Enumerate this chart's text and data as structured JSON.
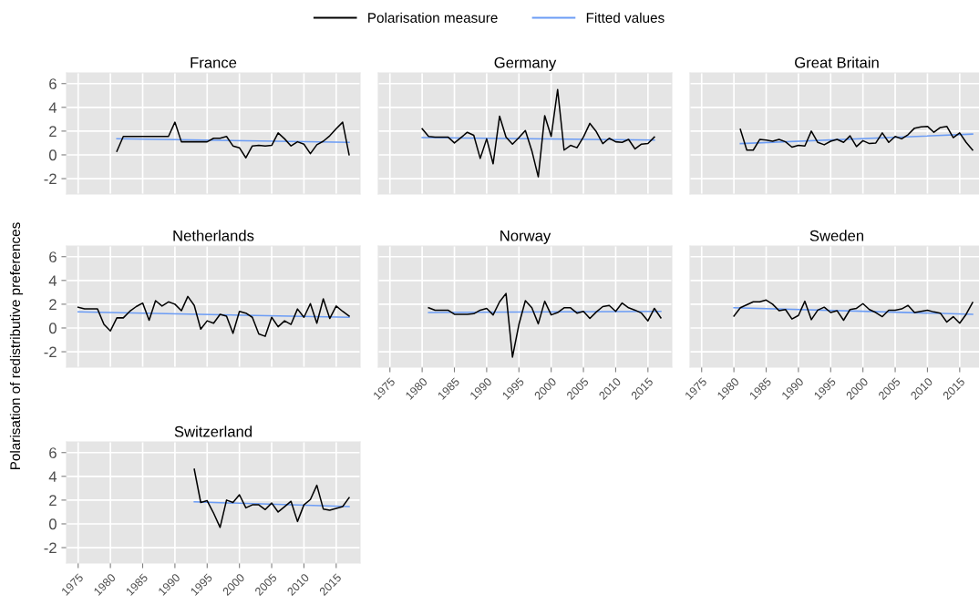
{
  "chart_data": [
    {
      "type": "line",
      "title": "France",
      "legend": "top",
      "grid": true,
      "tick_labels": "y",
      "xlim": [
        1973.2,
        2018.7
      ],
      "ylim": [
        -3.3,
        6.9
      ],
      "xticks": [
        1975,
        1980,
        1985,
        1990,
        1995,
        2000,
        2005,
        2010,
        2015
      ],
      "yticks": [
        -2,
        0,
        2,
        4,
        6
      ],
      "series": [
        {
          "name": "Polarisation measure",
          "color": "#000000",
          "x": [
            1981,
            1982,
            1983,
            1984,
            1985,
            1986,
            1987,
            1988,
            1989,
            1990,
            1991,
            1992,
            1993,
            1994,
            1995,
            1996,
            1997,
            1998,
            1999,
            2000,
            2001,
            2002,
            2003,
            2004,
            2005,
            2006,
            2007,
            2008,
            2009,
            2010,
            2011,
            2012,
            2013,
            2014,
            2015,
            2016,
            2017
          ],
          "values": [
            0.3,
            1.55,
            1.55,
            1.55,
            1.55,
            1.55,
            1.55,
            1.55,
            1.55,
            2.75,
            1.1,
            1.1,
            1.1,
            1.1,
            1.1,
            1.4,
            1.4,
            1.55,
            0.75,
            0.6,
            -0.25,
            0.75,
            0.8,
            0.75,
            0.8,
            1.85,
            1.35,
            0.75,
            1.1,
            0.9,
            0.1,
            0.85,
            1.15,
            1.6,
            2.2,
            2.75,
            0.0
          ]
        },
        {
          "name": "Fitted values",
          "color": "#6b9cf5",
          "x": [
            1981,
            2017
          ],
          "values": [
            1.35,
            1.05
          ]
        }
      ]
    },
    {
      "type": "line",
      "title": "Germany",
      "grid": true,
      "tick_labels": false,
      "xlim": [
        1973.2,
        2018.7
      ],
      "ylim": [
        -3.3,
        6.9
      ],
      "xticks": [
        1975,
        1980,
        1985,
        1990,
        1995,
        2000,
        2005,
        2010,
        2015
      ],
      "yticks": [
        -2,
        0,
        2,
        4,
        6
      ],
      "series": [
        {
          "name": "Polarisation measure",
          "color": "#000000",
          "x": [
            1980,
            1981,
            1982,
            1983,
            1984,
            1985,
            1986,
            1987,
            1988,
            1989,
            1990,
            1991,
            1992,
            1993,
            1994,
            1995,
            1996,
            1997,
            1998,
            1999,
            2000,
            2001,
            2002,
            2003,
            2004,
            2005,
            2006,
            2007,
            2008,
            2009,
            2010,
            2011,
            2012,
            2013,
            2014,
            2015,
            2016
          ],
          "values": [
            2.2,
            1.55,
            1.5,
            1.5,
            1.5,
            1.0,
            1.45,
            1.9,
            1.65,
            -0.3,
            1.35,
            -0.75,
            3.25,
            1.5,
            0.9,
            1.45,
            2.05,
            0.35,
            -1.85,
            3.3,
            1.55,
            5.5,
            0.4,
            0.8,
            0.6,
            1.5,
            2.65,
            1.95,
            0.95,
            1.4,
            1.1,
            1.05,
            1.3,
            0.5,
            0.9,
            0.95,
            1.5
          ]
        },
        {
          "name": "Fitted values",
          "color": "#6b9cf5",
          "x": [
            1980,
            2016
          ],
          "values": [
            1.45,
            1.25
          ]
        }
      ]
    },
    {
      "type": "line",
      "title": "Great Britain",
      "grid": true,
      "tick_labels": false,
      "xlim": [
        1973.2,
        2018.7
      ],
      "ylim": [
        -3.3,
        6.9
      ],
      "xticks": [
        1975,
        1980,
        1985,
        1990,
        1995,
        2000,
        2005,
        2010,
        2015
      ],
      "yticks": [
        -2,
        0,
        2,
        4,
        6
      ],
      "series": [
        {
          "name": "Polarisation measure",
          "color": "#000000",
          "x": [
            1981,
            1982,
            1983,
            1984,
            1985,
            1986,
            1987,
            1988,
            1989,
            1990,
            1991,
            1992,
            1993,
            1994,
            1995,
            1996,
            1997,
            1998,
            1999,
            2000,
            2001,
            2002,
            2003,
            2004,
            2005,
            2006,
            2007,
            2008,
            2009,
            2010,
            2011,
            2012,
            2013,
            2014,
            2015,
            2016,
            2017
          ],
          "values": [
            2.15,
            0.4,
            0.4,
            1.3,
            1.25,
            1.15,
            1.3,
            1.1,
            0.65,
            0.8,
            0.75,
            2.0,
            1.05,
            0.85,
            1.15,
            1.3,
            1.05,
            1.6,
            0.7,
            1.2,
            0.95,
            1.0,
            1.85,
            1.05,
            1.55,
            1.35,
            1.7,
            2.25,
            2.35,
            2.4,
            1.9,
            2.3,
            2.4,
            1.45,
            1.85,
            1.05,
            0.4
          ]
        },
        {
          "name": "Fitted values",
          "color": "#6b9cf5",
          "x": [
            1981,
            2017
          ],
          "values": [
            0.95,
            1.75
          ]
        }
      ]
    },
    {
      "type": "line",
      "title": "Netherlands",
      "ylabel": "Polarisation of redistributive preferences",
      "grid": true,
      "tick_labels": "y",
      "xlim": [
        1973.2,
        2018.7
      ],
      "ylim": [
        -3.3,
        6.9
      ],
      "xticks": [
        1975,
        1980,
        1985,
        1990,
        1995,
        2000,
        2005,
        2010,
        2015
      ],
      "yticks": [
        -2,
        0,
        2,
        4,
        6
      ],
      "series": [
        {
          "name": "Polarisation measure",
          "color": "#000000",
          "x": [
            1975,
            1976,
            1977,
            1978,
            1979,
            1980,
            1981,
            1982,
            1983,
            1984,
            1985,
            1986,
            1987,
            1988,
            1989,
            1990,
            1991,
            1992,
            1993,
            1994,
            1995,
            1996,
            1997,
            1998,
            1999,
            2000,
            2001,
            2002,
            2003,
            2004,
            2005,
            2006,
            2007,
            2008,
            2009,
            2010,
            2011,
            2012,
            2013,
            2014,
            2015,
            2016,
            2017
          ],
          "values": [
            1.75,
            1.6,
            1.6,
            1.6,
            0.3,
            -0.25,
            0.85,
            0.85,
            1.4,
            1.8,
            2.1,
            0.65,
            2.3,
            1.85,
            2.2,
            2.0,
            1.45,
            2.65,
            1.9,
            -0.1,
            0.6,
            0.4,
            1.15,
            1.0,
            -0.45,
            1.4,
            1.25,
            0.9,
            -0.5,
            -0.7,
            0.9,
            0.1,
            0.6,
            0.3,
            1.6,
            0.9,
            2.05,
            0.4,
            2.45,
            0.8,
            1.85,
            1.4,
            1.0
          ]
        },
        {
          "name": "Fitted values",
          "color": "#6b9cf5",
          "x": [
            1975,
            2017
          ],
          "values": [
            1.35,
            0.9
          ]
        }
      ]
    },
    {
      "type": "line",
      "title": "Norway",
      "grid": true,
      "tick_labels": "x",
      "xlim": [
        1973.2,
        2018.7
      ],
      "ylim": [
        -3.3,
        6.9
      ],
      "xticks": [
        1975,
        1980,
        1985,
        1990,
        1995,
        2000,
        2005,
        2010,
        2015
      ],
      "yticks": [
        -2,
        0,
        2,
        4,
        6
      ],
      "series": [
        {
          "name": "Polarisation measure",
          "color": "#000000",
          "x": [
            1981,
            1982,
            1983,
            1984,
            1985,
            1986,
            1987,
            1988,
            1989,
            1990,
            1991,
            1992,
            1993,
            1994,
            1995,
            1996,
            1997,
            1998,
            1999,
            2000,
            2001,
            2002,
            2003,
            2004,
            2005,
            2006,
            2007,
            2008,
            2009,
            2010,
            2011,
            2012,
            2013,
            2014,
            2015,
            2016,
            2017
          ],
          "values": [
            1.7,
            1.5,
            1.5,
            1.5,
            1.15,
            1.15,
            1.15,
            1.2,
            1.5,
            1.65,
            1.1,
            2.2,
            2.9,
            -2.45,
            0.3,
            2.3,
            1.7,
            0.35,
            2.25,
            1.1,
            1.3,
            1.7,
            1.7,
            1.25,
            1.4,
            0.8,
            1.35,
            1.8,
            1.9,
            1.4,
            2.1,
            1.7,
            1.5,
            1.25,
            0.6,
            1.65,
            0.85
          ]
        },
        {
          "name": "Fitted values",
          "color": "#6b9cf5",
          "x": [
            1981,
            2017
          ],
          "values": [
            1.3,
            1.4
          ]
        }
      ]
    },
    {
      "type": "line",
      "title": "Sweden",
      "grid": true,
      "tick_labels": "x",
      "xlim": [
        1973.2,
        2018.7
      ],
      "ylim": [
        -3.3,
        6.9
      ],
      "xticks": [
        1975,
        1980,
        1985,
        1990,
        1995,
        2000,
        2005,
        2010,
        2015
      ],
      "yticks": [
        -2,
        0,
        2,
        4,
        6
      ],
      "series": [
        {
          "name": "Polarisation measure",
          "color": "#000000",
          "x": [
            1980,
            1981,
            1982,
            1983,
            1984,
            1985,
            1986,
            1987,
            1988,
            1989,
            1990,
            1991,
            1992,
            1993,
            1994,
            1995,
            1996,
            1997,
            1998,
            1999,
            2000,
            2001,
            2002,
            2003,
            2004,
            2005,
            2006,
            2007,
            2008,
            2009,
            2010,
            2011,
            2012,
            2013,
            2014,
            2015,
            2016,
            2017
          ],
          "values": [
            1.0,
            1.7,
            1.95,
            2.2,
            2.2,
            2.35,
            2.0,
            1.45,
            1.55,
            0.75,
            1.05,
            2.25,
            0.7,
            1.5,
            1.75,
            1.3,
            1.45,
            0.65,
            1.55,
            1.65,
            2.05,
            1.55,
            1.3,
            0.95,
            1.5,
            1.5,
            1.6,
            1.9,
            1.3,
            1.4,
            1.5,
            1.35,
            1.25,
            0.5,
            0.95,
            0.4,
            1.15,
            2.15
          ]
        },
        {
          "name": "Fitted values",
          "color": "#6b9cf5",
          "x": [
            1980,
            2017
          ],
          "values": [
            1.7,
            1.15
          ]
        }
      ]
    },
    {
      "type": "line",
      "title": "Switzerland",
      "grid": true,
      "xlim": [
        1973.2,
        2018.7
      ],
      "ylim": [
        -3.3,
        6.9
      ],
      "xticks": [
        1975,
        1980,
        1985,
        1990,
        1995,
        2000,
        2005,
        2010,
        2015
      ],
      "yticks": [
        -2,
        0,
        2,
        4,
        6
      ],
      "series": [
        {
          "name": "Polarisation measure",
          "color": "#000000",
          "x": [
            1993,
            1994,
            1995,
            1996,
            1997,
            1998,
            1999,
            2000,
            2001,
            2002,
            2003,
            2004,
            2005,
            2006,
            2007,
            2008,
            2009,
            2010,
            2011,
            2012,
            2013,
            2014,
            2015,
            2016,
            2017
          ],
          "values": [
            4.6,
            1.8,
            1.95,
            0.9,
            -0.3,
            2.0,
            1.8,
            2.45,
            1.35,
            1.6,
            1.6,
            1.2,
            1.75,
            1.0,
            1.45,
            1.9,
            0.2,
            1.6,
            2.05,
            3.25,
            1.25,
            1.15,
            1.3,
            1.45,
            2.2
          ]
        },
        {
          "name": "Fitted values",
          "color": "#6b9cf5",
          "x": [
            1993,
            2017
          ],
          "values": [
            1.85,
            1.45
          ]
        }
      ]
    }
  ]
}
